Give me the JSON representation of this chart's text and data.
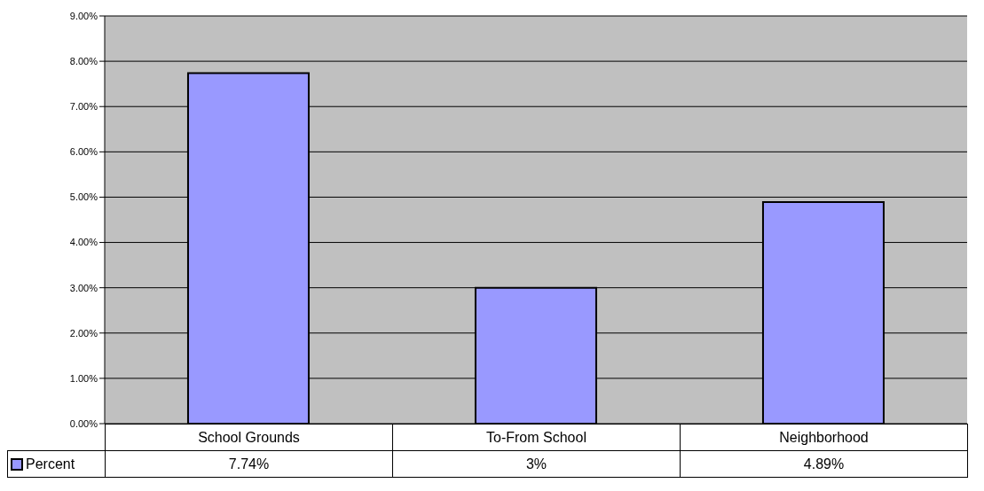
{
  "chart_data": {
    "type": "bar",
    "categories": [
      "School Grounds",
      "To-From School",
      "Neighborhood"
    ],
    "series": [
      {
        "name": "Percent",
        "color": "#9999ff",
        "values": [
          7.74,
          3,
          4.89
        ],
        "value_labels": [
          "7.74%",
          "3%",
          "4.89%"
        ]
      }
    ],
    "ylim": [
      0,
      9
    ],
    "yticks": [
      {
        "value": 0,
        "label": "0.00%"
      },
      {
        "value": 1,
        "label": "1.00%"
      },
      {
        "value": 2,
        "label": "2.00%"
      },
      {
        "value": 3,
        "label": "3.00%"
      },
      {
        "value": 4,
        "label": "4.00%"
      },
      {
        "value": 5,
        "label": "5.00%"
      },
      {
        "value": 6,
        "label": "6.00%"
      },
      {
        "value": 7,
        "label": "7.00%"
      },
      {
        "value": 8,
        "label": "8.00%"
      },
      {
        "value": 9,
        "label": "9.00%"
      }
    ],
    "grid": "y",
    "legend": "bottom left"
  }
}
